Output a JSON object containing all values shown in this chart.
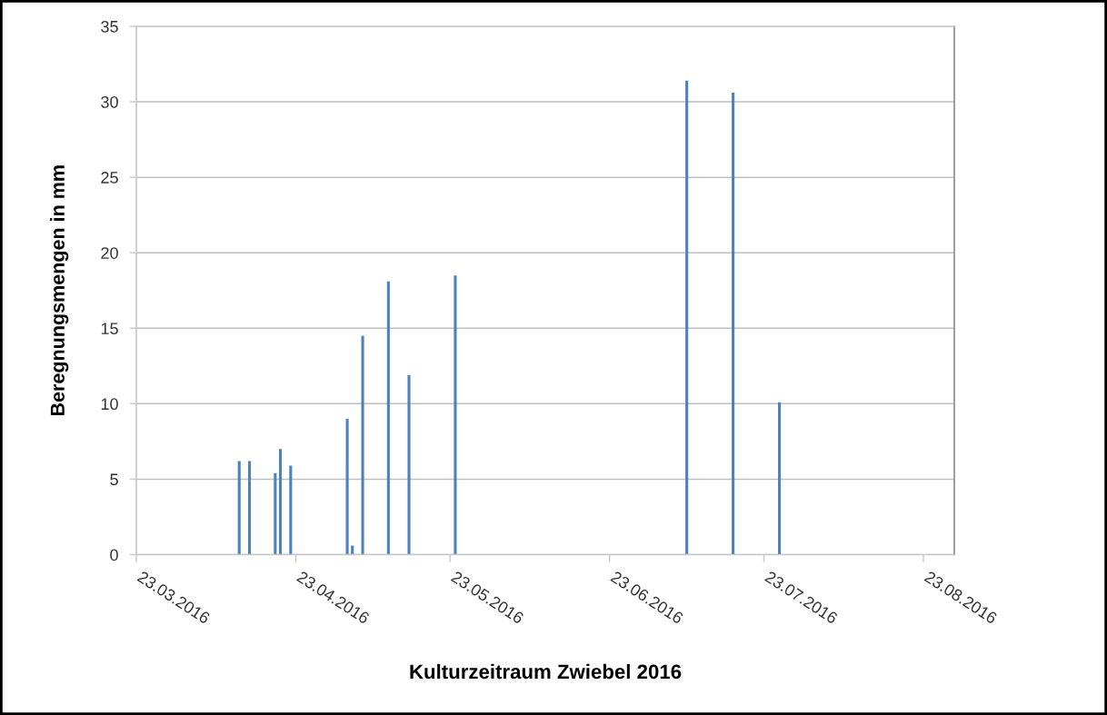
{
  "chart_data": {
    "type": "bar",
    "xlabel": "Kulturzeitraum Zwiebel 2016",
    "ylabel": "Beregnungsmengen in mm",
    "x": [
      "2016-04-12",
      "2016-04-14",
      "2016-04-19",
      "2016-04-20",
      "2016-04-22",
      "2016-05-03",
      "2016-05-04",
      "2016-05-06",
      "2016-05-11",
      "2016-05-15",
      "2016-05-24",
      "2016-07-08",
      "2016-07-17",
      "2016-07-26"
    ],
    "values": [
      6.2,
      6.2,
      5.4,
      7.0,
      5.9,
      9.0,
      0.6,
      14.5,
      18.1,
      11.9,
      18.5,
      31.4,
      30.6,
      10.1
    ],
    "color": "#4f81bd",
    "xlim": [
      "2016-03-23",
      "2016-08-29"
    ],
    "xticks": [
      {
        "value": "2016-03-23",
        "label": "23.03.2016"
      },
      {
        "value": "2016-04-23",
        "label": "23.04.2016"
      },
      {
        "value": "2016-05-23",
        "label": "23.05.2016"
      },
      {
        "value": "2016-06-23",
        "label": "23.06.2016"
      },
      {
        "value": "2016-07-23",
        "label": "23.07.2016"
      },
      {
        "value": "2016-08-23",
        "label": "23.08.2016"
      }
    ],
    "ylim": [
      0,
      35
    ],
    "yticks": [
      0,
      5,
      10,
      15,
      20,
      25,
      30,
      35
    ],
    "grid": "y"
  }
}
